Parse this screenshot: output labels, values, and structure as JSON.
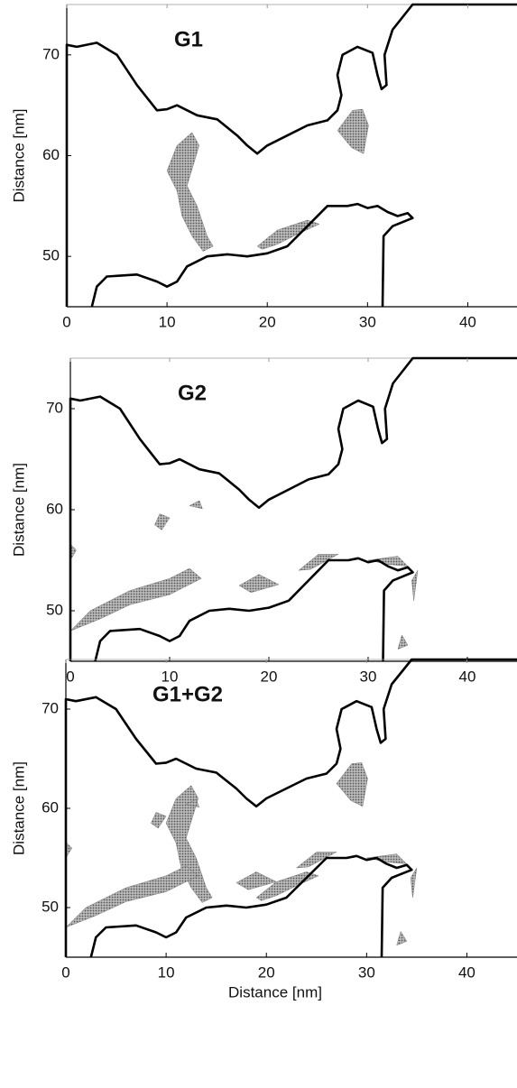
{
  "chart_data": [
    {
      "type": "contour",
      "title": "G1",
      "ylabel": "Distance [nm]",
      "xlim": [
        0,
        45
      ],
      "ylim": [
        45,
        75
      ],
      "xticks": [
        0,
        10,
        20,
        30,
        40
      ],
      "yticks": [
        50,
        60,
        70
      ]
    },
    {
      "type": "contour",
      "title": "G2",
      "ylabel": "Distance [nm]",
      "xlim": [
        0,
        45
      ],
      "ylim": [
        45,
        75
      ],
      "xticks": [
        0,
        10,
        20,
        30,
        40
      ],
      "yticks": [
        50,
        60,
        70
      ]
    },
    {
      "type": "contour",
      "title": "G1+G2",
      "xlabel": "Distance [nm]",
      "ylabel": "Distance [nm]",
      "xlim": [
        0,
        45
      ],
      "ylim": [
        45,
        75
      ],
      "xticks": [
        0,
        10,
        20,
        30,
        40
      ],
      "yticks": [
        50,
        60,
        70
      ]
    }
  ]
}
